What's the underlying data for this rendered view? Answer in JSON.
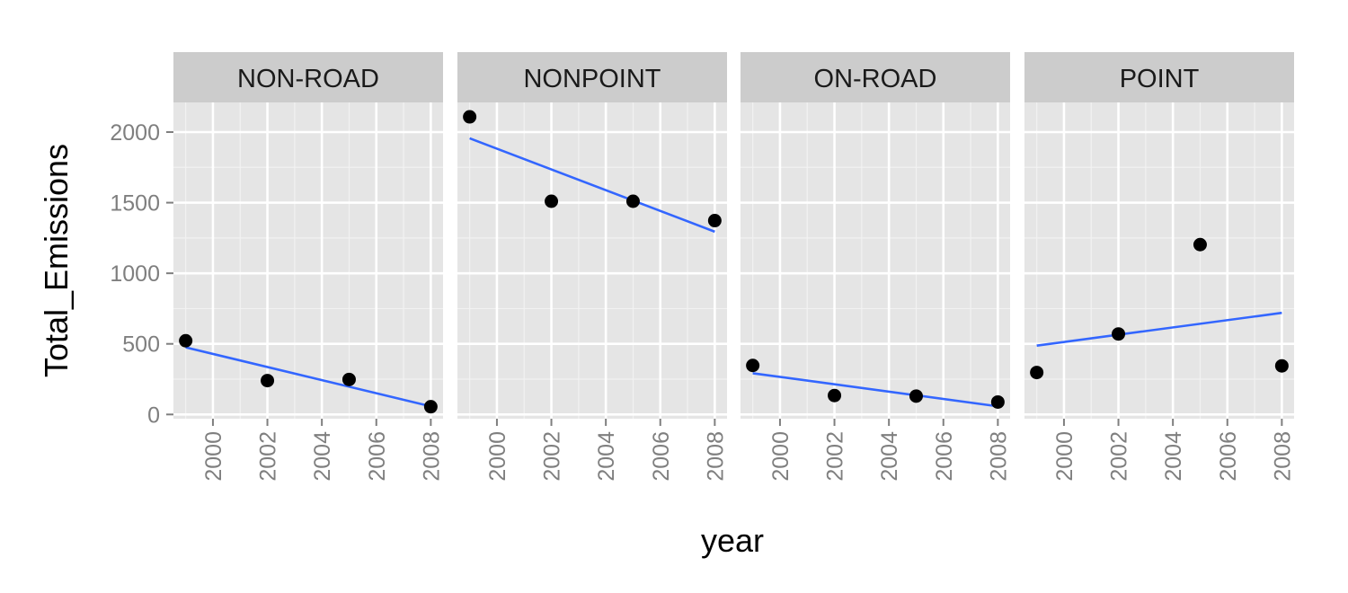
{
  "chart_data": {
    "type": "scatter",
    "facet_by": "type",
    "facets": [
      "NON-ROAD",
      "NONPOINT",
      "ON-ROAD",
      "POINT"
    ],
    "xlabel": "year",
    "ylabel": "Total_Emissions",
    "x_ticks": [
      2000,
      2002,
      2004,
      2006,
      2008
    ],
    "y_ticks": [
      0,
      500,
      1000,
      1500,
      2000
    ],
    "y_tick_labels": [
      "0",
      "500",
      "1000",
      "1500",
      "2000"
    ],
    "x_tick_labels": [
      "2000",
      "2002",
      "2004",
      "2006",
      "2008"
    ],
    "xlim": [
      1998.55,
      2008.45
    ],
    "ylim": [
      -30,
      2210
    ],
    "grid": true,
    "trend_line": "linear fit per facet",
    "series": [
      {
        "facet": "NON-ROAD",
        "x": [
          1999,
          2002,
          2005,
          2008
        ],
        "y": [
          522,
          240,
          248,
          55
        ]
      },
      {
        "facet": "NONPOINT",
        "x": [
          1999,
          2002,
          2005,
          2008
        ],
        "y": [
          2108,
          1510,
          1510,
          1373
        ]
      },
      {
        "facet": "ON-ROAD",
        "x": [
          1999,
          2002,
          2005,
          2008
        ],
        "y": [
          347,
          134,
          130,
          88
        ]
      },
      {
        "facet": "POINT",
        "x": [
          1999,
          2002,
          2005,
          2008
        ],
        "y": [
          297,
          570,
          1203,
          344
        ]
      }
    ],
    "colors": {
      "panel_background": "#e5e5e5",
      "strip_background": "#cccccc",
      "grid": "#ffffff",
      "points": "#000000",
      "trend": "#3366ff"
    }
  }
}
